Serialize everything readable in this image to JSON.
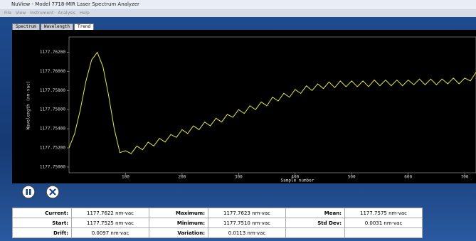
{
  "window": {
    "title": "NuView - Model 7718-MIR Laser Spectrum Analyzer",
    "menu": [
      "File",
      "View",
      "Instrument",
      "Analysis",
      "Help"
    ],
    "tabs": [
      "Spectrum",
      "Wavelength",
      "Trend"
    ]
  },
  "chart_data": {
    "type": "line",
    "y_label": "Wavelength (nm-vac)",
    "x_label": "Sample number",
    "x": [
      0,
      10,
      20,
      30,
      40,
      50,
      60,
      70,
      80,
      90,
      100,
      110,
      120,
      130,
      140,
      150,
      160,
      170,
      180,
      190,
      200,
      210,
      220,
      230,
      240,
      250,
      260,
      270,
      280,
      290,
      300,
      310,
      320,
      330,
      340,
      350,
      360,
      370,
      380,
      390,
      400,
      410,
      420,
      430,
      440,
      450,
      460,
      470,
      480,
      490,
      500,
      510,
      520,
      530,
      540,
      550,
      560,
      570,
      580,
      590,
      600,
      610,
      620,
      630,
      640,
      650,
      660,
      670,
      680,
      690,
      700,
      710,
      720
    ],
    "series": [
      {
        "color": "#e4e44c",
        "values": [
          1177.752,
          1177.7535,
          1177.756,
          1177.759,
          1177.7612,
          1177.762,
          1177.7605,
          1177.7575,
          1177.754,
          1177.7515,
          1177.7517,
          1177.7514,
          1177.7522,
          1177.7518,
          1177.7526,
          1177.7522,
          1177.753,
          1177.7526,
          1177.7534,
          1177.7531,
          1177.7539,
          1177.7535,
          1177.7543,
          1177.7539,
          1177.7547,
          1177.7543,
          1177.7551,
          1177.7547,
          1177.7555,
          1177.7552,
          1177.756,
          1177.7556,
          1177.7564,
          1177.756,
          1177.7568,
          1177.7564,
          1177.7573,
          1177.7569,
          1177.7577,
          1177.7573,
          1177.7581,
          1177.7577,
          1177.7585,
          1177.758,
          1177.7587,
          1177.7582,
          1177.7589,
          1177.7583,
          1177.759,
          1177.7584,
          1177.759,
          1177.7584,
          1177.759,
          1177.7584,
          1177.7591,
          1177.7585,
          1177.7591,
          1177.7585,
          1177.7591,
          1177.7585,
          1177.7591,
          1177.7586,
          1177.7592,
          1177.7586,
          1177.7592,
          1177.7586,
          1177.7592,
          1177.7587,
          1177.7593,
          1177.7587,
          1177.7593,
          1177.759,
          1177.7599
        ]
      }
    ],
    "xlim": [
      0,
      720
    ],
    "ylim": [
      1177.7494,
      1177.7636
    ],
    "xticks": [
      100,
      200,
      300,
      400,
      500,
      600,
      700
    ],
    "yticks": [
      {
        "value": 1177.762,
        "label": "1177.76200"
      },
      {
        "value": 1177.76,
        "label": "1177.76000"
      },
      {
        "value": 1177.758,
        "label": "1177.75800"
      },
      {
        "value": 1177.756,
        "label": "1177.75600"
      },
      {
        "value": 1177.754,
        "label": "1177.75400"
      },
      {
        "value": 1177.752,
        "label": "1177.75200"
      },
      {
        "value": 1177.75,
        "label": "1177.75000"
      }
    ]
  },
  "stats": {
    "rows": [
      [
        "Current:",
        "1177.7622 nm-vac",
        "Maximum:",
        "1177.7623 nm-vac",
        "Mean:",
        "1177.7575 nm-vac"
      ],
      [
        "Start:",
        "1177.7525 nm-vac",
        "Minimum:",
        "1177.7510 nm-vac",
        "Std Dev:",
        "0.0031 nm-vac"
      ],
      [
        "Drift:",
        "0.0097 nm-vac",
        "Variation:",
        "0.0113 nm-vac"
      ]
    ]
  }
}
